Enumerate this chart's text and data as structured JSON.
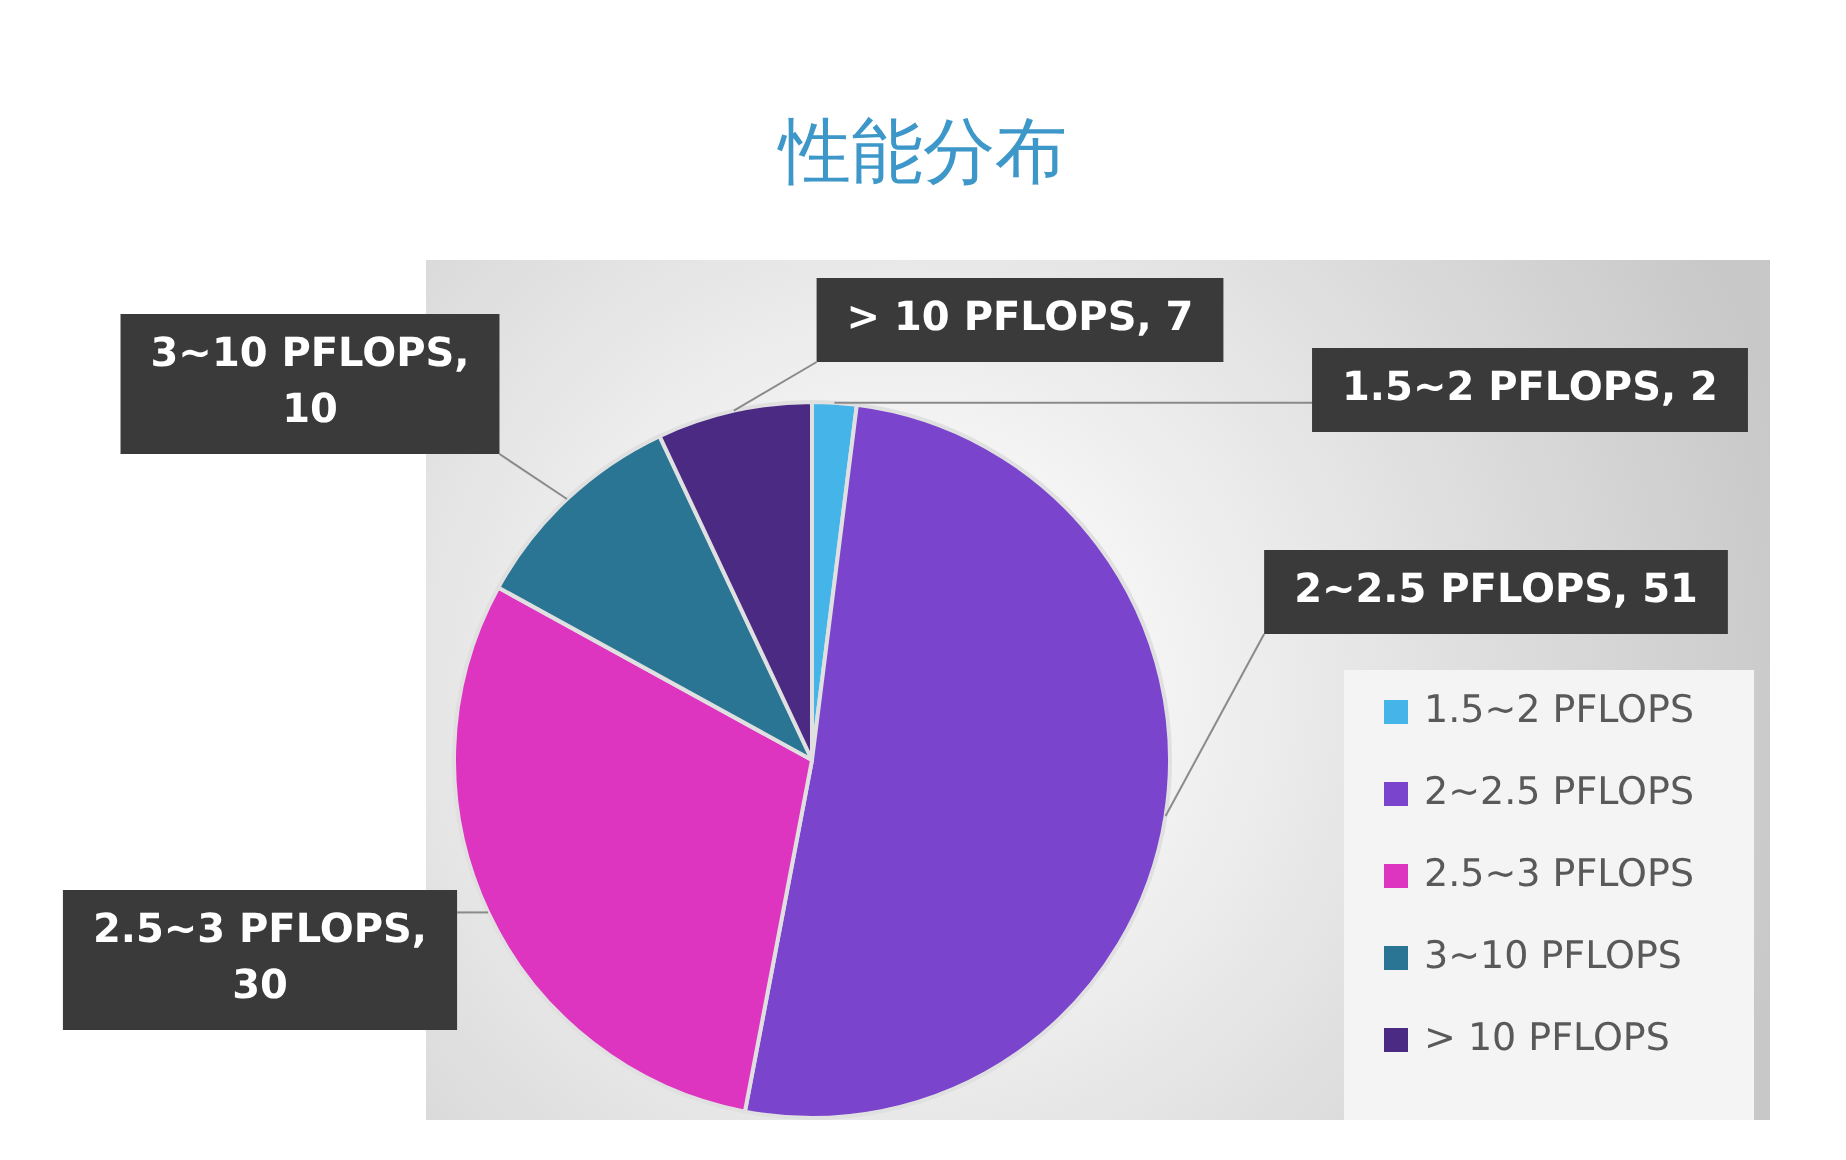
{
  "chart_data": {
    "type": "pie",
    "title": "性能分布",
    "categories": [
      "1.5~2 PFLOPS",
      "2~2.5 PFLOPS",
      "2.5~3 PFLOPS",
      "3~10 PFLOPS",
      "> 10 PFLOPS"
    ],
    "values": [
      2,
      51,
      30,
      10,
      7
    ],
    "colors": [
      "#45b4e8",
      "#7a44cc",
      "#dd35bf",
      "#2a7594",
      "#4b2a84"
    ],
    "value_labels": [
      "1.5~2 PFLOPS, 2",
      "2~2.5 PFLOPS, 51",
      "2.5~3 PFLOPS, 30",
      "3~10 PFLOPS, 10",
      "> 10 PFLOPS, 7"
    ],
    "legend": "bottom right"
  }
}
